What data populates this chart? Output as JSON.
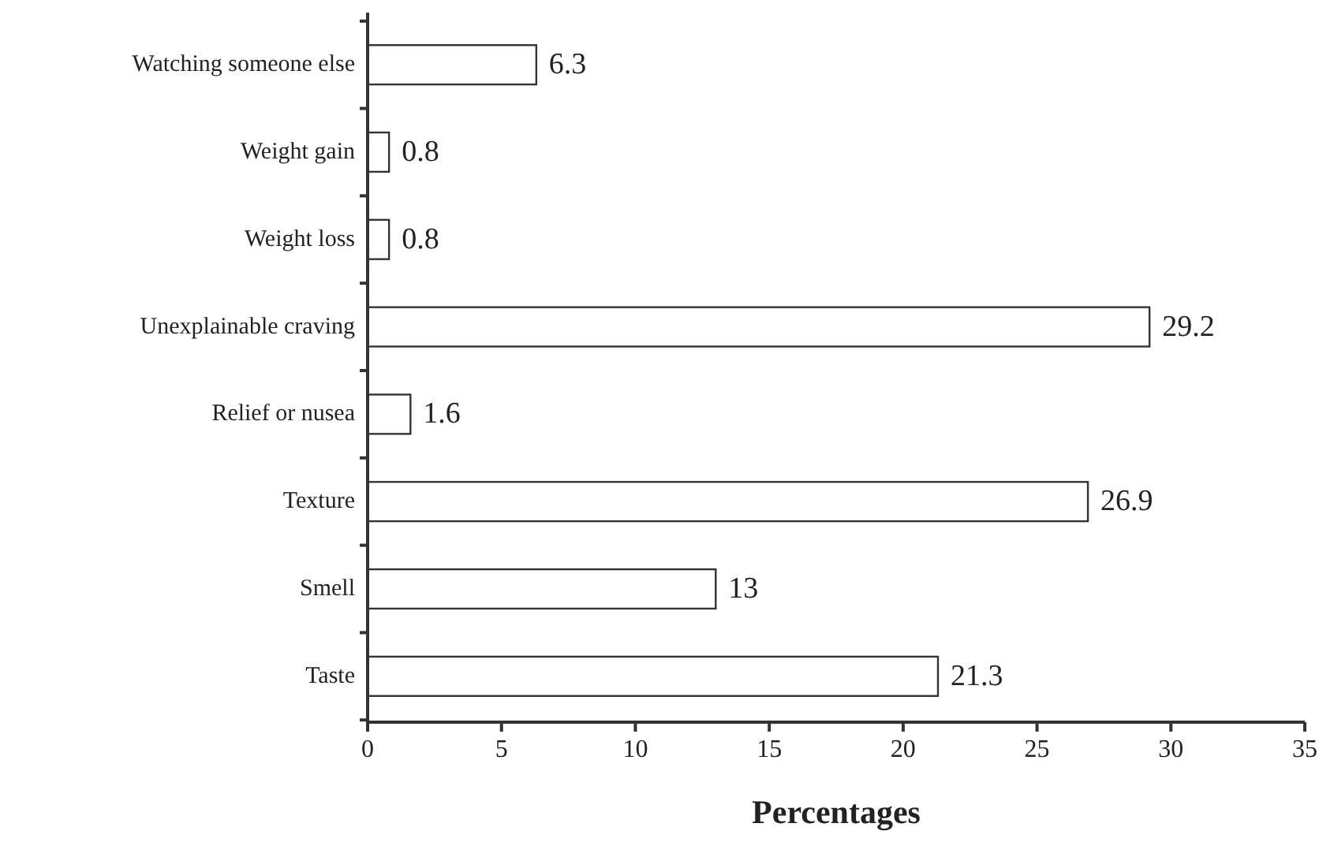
{
  "chart_data": {
    "type": "bar",
    "orientation": "horizontal",
    "categories": [
      "Watching someone else",
      "Weight gain",
      "Weight loss",
      "Unexplainable craving",
      "Relief or nusea",
      "Texture",
      "Smell",
      "Taste"
    ],
    "values": [
      6.3,
      0.8,
      0.8,
      29.2,
      1.6,
      26.9,
      13,
      21.3
    ],
    "color": "#ffffff",
    "xlim": [
      0,
      35
    ],
    "xticks": [
      0,
      5,
      10,
      15,
      20,
      25,
      30,
      35
    ],
    "xlabel": "Percentages",
    "data_labels": true
  }
}
